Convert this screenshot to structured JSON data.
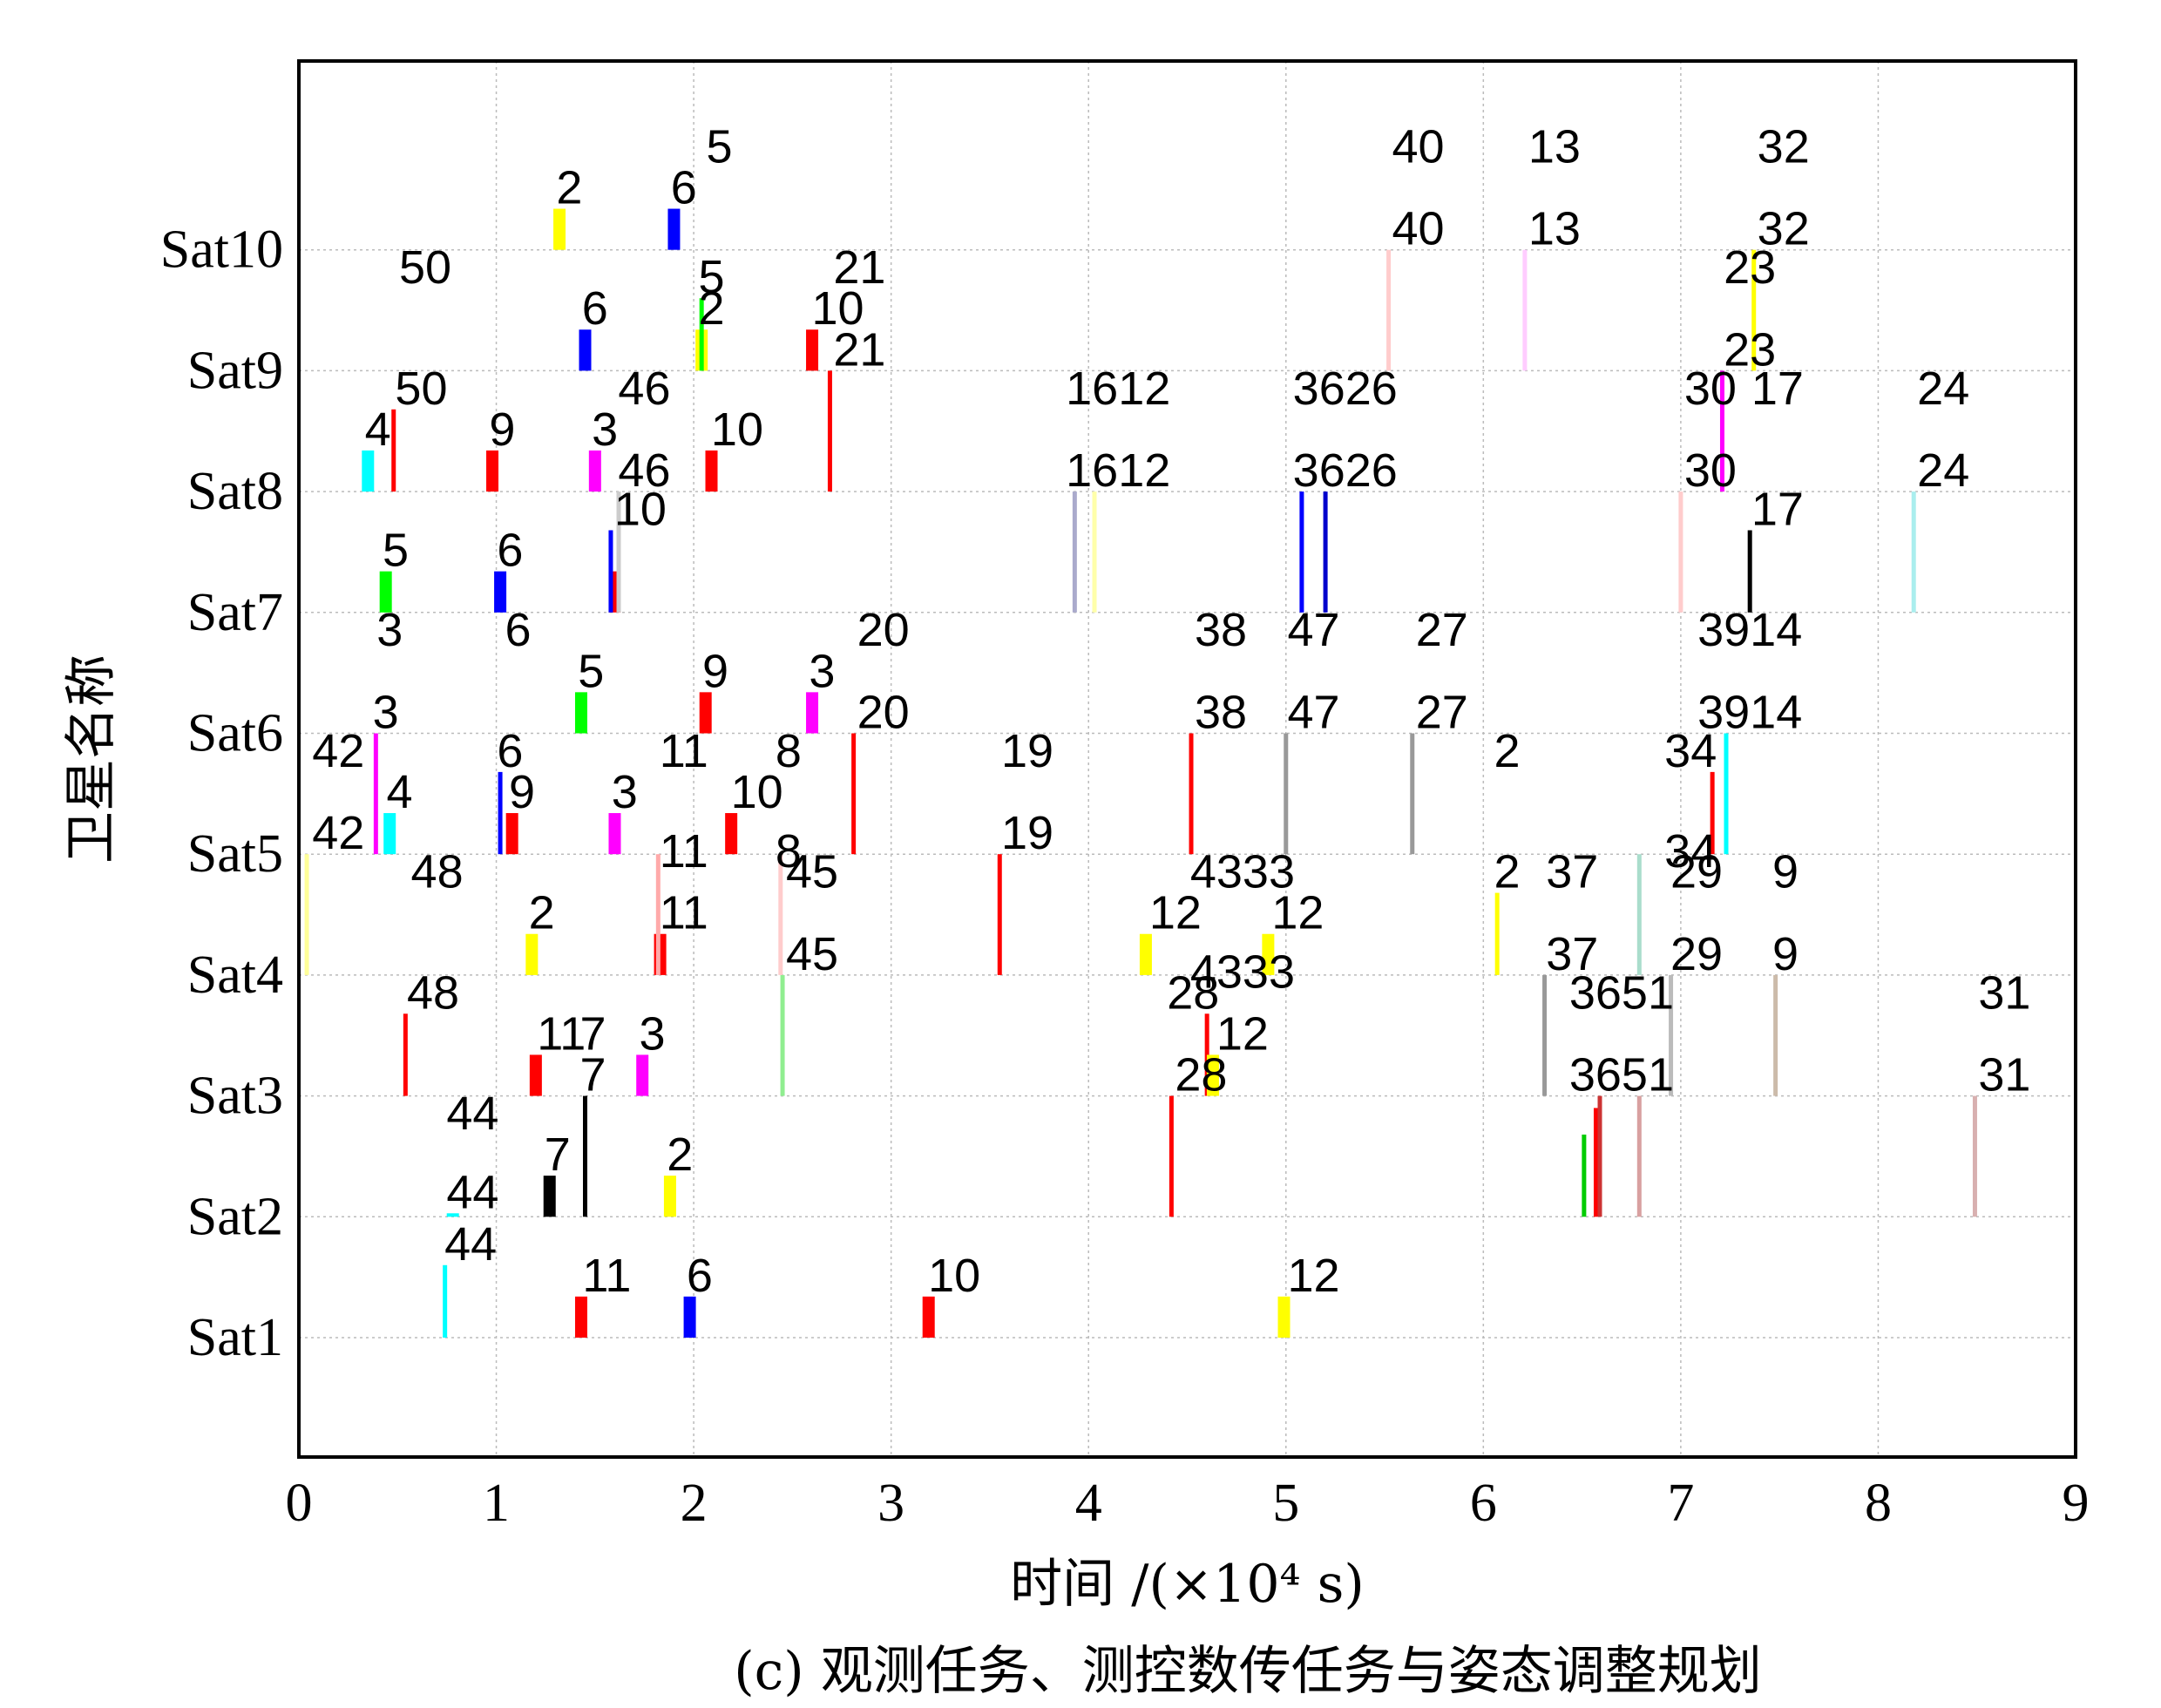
{
  "chart_data": {
    "type": "scatter",
    "subtype": "gantt-schedule",
    "xlabel": "时间 /(×10⁴ s)",
    "ylabel": "卫星名称",
    "caption": "(c) 观测任务、测控数传任务与姿态调整规划",
    "xlim": [
      0,
      9
    ],
    "xticks": [
      "0",
      "1",
      "2",
      "3",
      "4",
      "5",
      "6",
      "7",
      "8",
      "9"
    ],
    "satellites": [
      "Sat1",
      "Sat2",
      "Sat3",
      "Sat4",
      "Sat5",
      "Sat6",
      "Sat7",
      "Sat8",
      "Sat9",
      "Sat10"
    ],
    "grid": true,
    "tasks": [
      {
        "sat": 1,
        "x": 0.74,
        "h": 0.6,
        "color": "#00ffff",
        "label": "44",
        "lx": 0.87
      },
      {
        "sat": 1,
        "x": 1.43,
        "h": 0.34,
        "color": "#ff0000",
        "label": "11",
        "lx": 1.56
      },
      {
        "sat": 1,
        "x": 1.98,
        "h": 0.34,
        "color": "#0000ff",
        "label": "6",
        "lx": 2.03
      },
      {
        "sat": 1,
        "x": 3.19,
        "h": 0.34,
        "color": "#ff0000",
        "label": "10",
        "lx": 3.32
      },
      {
        "sat": 1,
        "x": 4.99,
        "h": 0.34,
        "color": "#ffff00",
        "label": "12",
        "lx": 5.14
      },
      {
        "sat": 2,
        "x": 1.27,
        "h": 0.34,
        "color": "#000000",
        "label": "7",
        "lx": 1.31
      },
      {
        "sat": 2,
        "x": 1.45,
        "h": 1.0,
        "color": "#000000",
        "label": "7",
        "lx": 1.49
      },
      {
        "sat": 2,
        "x": 1.88,
        "h": 0.34,
        "color": "#ffff00",
        "label": "2",
        "lx": 1.93
      },
      {
        "sat": 2,
        "x": 0.78,
        "h": 0.0,
        "color": "#00ffff",
        "label": "44",
        "lx": 0.88
      },
      {
        "sat": 2,
        "x": 4.42,
        "h": 1.0,
        "color": "#ff0000",
        "label": "28",
        "lx": 4.57
      },
      {
        "sat": 2,
        "x": 6.51,
        "h": 0.68,
        "color": "#00cc00",
        "label": "",
        "lx": 0
      },
      {
        "sat": 2,
        "x": 6.57,
        "h": 0.9,
        "color": "#ff0000",
        "label": "",
        "lx": 0
      },
      {
        "sat": 2,
        "x": 6.59,
        "h": 1.0,
        "color": "#cc3333",
        "label": "3651",
        "lx": 6.7
      },
      {
        "sat": 2,
        "x": 6.79,
        "h": 1.0,
        "color": "#d8a0a0",
        "label": "",
        "lx": 0
      },
      {
        "sat": 2,
        "x": 8.49,
        "h": 1.0,
        "color": "#d8b0b0",
        "label": "31",
        "lx": 8.64
      },
      {
        "sat": 3,
        "x": 0.54,
        "h": 0.68,
        "color": "#ff0000",
        "label": "48",
        "lx": 0.68
      },
      {
        "sat": 3,
        "x": 1.2,
        "h": 0.34,
        "color": "#ff0000",
        "label": "11",
        "lx": 1.33
      },
      {
        "sat": 3,
        "x": 1.74,
        "h": 0.34,
        "color": "#ff00ff",
        "label": "3",
        "lx": 1.79
      },
      {
        "sat": 3,
        "x": 2.45,
        "h": 1.0,
        "color": "#90ee90",
        "label": "45",
        "lx": 2.6
      },
      {
        "sat": 3,
        "x": 4.6,
        "h": 0.68,
        "color": "#ff0000",
        "label": "28",
        "lx": 4.53
      },
      {
        "sat": 3,
        "x": 4.63,
        "h": 0.34,
        "color": "#ffff00",
        "label": "12",
        "lx": 4.78
      },
      {
        "sat": 3,
        "x": 6.31,
        "h": 1.0,
        "color": "#999999",
        "label": "37",
        "lx": 6.45
      },
      {
        "sat": 3,
        "x": 6.95,
        "h": 1.0,
        "color": "#bbbbbb",
        "label": "29",
        "lx": 7.08
      },
      {
        "sat": 3,
        "x": 7.48,
        "h": 1.0,
        "color": "#ccbbaa",
        "label": "9",
        "lx": 7.53
      },
      {
        "sat": 4,
        "x": 0.04,
        "h": 1.0,
        "color": "#ffff99",
        "label": "42",
        "lx": 0.2
      },
      {
        "sat": 4,
        "x": 1.18,
        "h": 0.34,
        "color": "#ffff00",
        "label": "2",
        "lx": 1.23
      },
      {
        "sat": 4,
        "x": 1.83,
        "h": 0.34,
        "color": "#ff0000",
        "label": "11",
        "lx": 1.95
      },
      {
        "sat": 4,
        "x": 1.82,
        "h": 1.0,
        "color": "#ffaaaa",
        "label": "",
        "lx": 0
      },
      {
        "sat": 4,
        "x": 2.44,
        "h": 1.0,
        "color": "#ffcccc",
        "label": "",
        "lx": 0
      },
      {
        "sat": 4,
        "x": 3.55,
        "h": 1.0,
        "color": "#ff0000",
        "label": "19",
        "lx": 3.69
      },
      {
        "sat": 4,
        "x": 4.29,
        "h": 0.34,
        "color": "#ffff00",
        "label": "12",
        "lx": 4.44
      },
      {
        "sat": 4,
        "x": 4.91,
        "h": 0.34,
        "color": "#ffff00",
        "label": "12",
        "lx": 5.06
      },
      {
        "sat": 4,
        "x": 6.07,
        "h": 0.68,
        "color": "#ffff00",
        "label": "2",
        "lx": 6.12
      },
      {
        "sat": 4,
        "x": 6.79,
        "h": 1.0,
        "color": "#aaddcc",
        "label": "",
        "lx": 0
      },
      {
        "sat": 5,
        "x": 0.39,
        "h": 1.0,
        "color": "#ff00ff",
        "label": "3",
        "lx": 0.44
      },
      {
        "sat": 5,
        "x": 0.46,
        "h": 0.34,
        "color": "#00ffff",
        "label": "4",
        "lx": 0.51
      },
      {
        "sat": 5,
        "x": 1.02,
        "h": 0.68,
        "color": "#0000ff",
        "label": "6",
        "lx": 1.07
      },
      {
        "sat": 5,
        "x": 1.08,
        "h": 0.34,
        "color": "#ff0000",
        "label": "9",
        "lx": 1.13
      },
      {
        "sat": 5,
        "x": 1.6,
        "h": 0.34,
        "color": "#ff00ff",
        "label": "3",
        "lx": 1.65
      },
      {
        "sat": 5,
        "x": 2.19,
        "h": 0.34,
        "color": "#ff0000",
        "label": "10",
        "lx": 2.32
      },
      {
        "sat": 5,
        "x": 2.81,
        "h": 1.0,
        "color": "#ff0000",
        "label": "20",
        "lx": 2.96
      },
      {
        "sat": 5,
        "x": 4.52,
        "h": 1.0,
        "color": "#ff0000",
        "label": "38",
        "lx": 4.67
      },
      {
        "sat": 5,
        "x": 5.0,
        "h": 1.0,
        "color": "#999999",
        "label": "47",
        "lx": 5.14
      },
      {
        "sat": 5,
        "x": 5.64,
        "h": 1.0,
        "color": "#999999",
        "label": "27",
        "lx": 5.79
      },
      {
        "sat": 5,
        "x": 7.16,
        "h": 0.68,
        "color": "#ff0000",
        "label": "",
        "lx": 0
      },
      {
        "sat": 5,
        "x": 7.23,
        "h": 1.0,
        "color": "#00ffff",
        "label": "3914",
        "lx": 7.35
      },
      {
        "sat": 6,
        "x": 1.43,
        "h": 0.34,
        "color": "#00ff00",
        "label": "5",
        "lx": 1.48
      },
      {
        "sat": 6,
        "x": 2.06,
        "h": 0.34,
        "color": "#ff0000",
        "label": "9",
        "lx": 2.11
      },
      {
        "sat": 6,
        "x": 2.6,
        "h": 0.34,
        "color": "#ff00ff",
        "label": "3",
        "lx": 2.65
      },
      {
        "sat": 7,
        "x": 0.44,
        "h": 0.34,
        "color": "#00ff00",
        "label": "5",
        "lx": 0.49
      },
      {
        "sat": 7,
        "x": 1.02,
        "h": 0.34,
        "color": "#0000ff",
        "label": "6",
        "lx": 1.07
      },
      {
        "sat": 7,
        "x": 1.6,
        "h": 0.34,
        "color": "#ff0000",
        "label": "",
        "lx": 0
      },
      {
        "sat": 7,
        "x": 1.58,
        "h": 0.68,
        "color": "#0000ff",
        "label": "10",
        "lx": 1.73
      },
      {
        "sat": 7,
        "x": 1.62,
        "h": 1.0,
        "color": "#cccccc",
        "label": "46",
        "lx": 1.75
      },
      {
        "sat": 7,
        "x": 3.93,
        "h": 1.0,
        "color": "#aaaacc",
        "label": "1612",
        "lx": 4.15
      },
      {
        "sat": 7,
        "x": 4.03,
        "h": 1.0,
        "color": "#ffffaa",
        "label": "",
        "lx": 0
      },
      {
        "sat": 7,
        "x": 5.08,
        "h": 1.0,
        "color": "#0000ff",
        "label": "3626",
        "lx": 5.3
      },
      {
        "sat": 7,
        "x": 5.2,
        "h": 1.0,
        "color": "#0000cc",
        "label": "",
        "lx": 0
      },
      {
        "sat": 7,
        "x": 7.0,
        "h": 1.0,
        "color": "#ffcccc",
        "label": "30",
        "lx": 7.15
      },
      {
        "sat": 7,
        "x": 7.35,
        "h": 0.68,
        "color": "#000000",
        "label": "17",
        "lx": 7.49
      },
      {
        "sat": 7,
        "x": 8.18,
        "h": 1.0,
        "color": "#aaeeee",
        "label": "24",
        "lx": 8.33
      },
      {
        "sat": 8,
        "x": 0.35,
        "h": 0.34,
        "color": "#00ffff",
        "label": "4",
        "lx": 0.4
      },
      {
        "sat": 8,
        "x": 0.48,
        "h": 0.68,
        "color": "#ff0000",
        "label": "50",
        "lx": 0.62
      },
      {
        "sat": 8,
        "x": 0.98,
        "h": 0.34,
        "color": "#ff0000",
        "label": "9",
        "lx": 1.03
      },
      {
        "sat": 8,
        "x": 1.5,
        "h": 0.34,
        "color": "#ff00ff",
        "label": "3",
        "lx": 1.55
      },
      {
        "sat": 8,
        "x": 2.09,
        "h": 0.34,
        "color": "#ff0000",
        "label": "10",
        "lx": 2.22
      },
      {
        "sat": 8,
        "x": 2.69,
        "h": 1.0,
        "color": "#ff0000",
        "label": "21",
        "lx": 2.84
      },
      {
        "sat": 8,
        "x": 7.21,
        "h": 1.0,
        "color": "#ff00ff",
        "label": "23",
        "lx": 7.35
      },
      {
        "sat": 9,
        "x": 1.45,
        "h": 0.34,
        "color": "#0000ff",
        "label": "6",
        "lx": 1.5
      },
      {
        "sat": 9,
        "x": 2.04,
        "h": 0.34,
        "color": "#ffff00",
        "label": "2",
        "lx": 2.09
      },
      {
        "sat": 9,
        "x": 2.04,
        "h": 0.6,
        "color": "#00ff00",
        "label": "5",
        "lx": 2.09
      },
      {
        "sat": 9,
        "x": 2.6,
        "h": 0.34,
        "color": "#ff0000",
        "label": "10",
        "lx": 2.73
      },
      {
        "sat": 9,
        "x": 5.52,
        "h": 1.0,
        "color": "#ffcccc",
        "label": "40",
        "lx": 5.67
      },
      {
        "sat": 9,
        "x": 6.21,
        "h": 1.0,
        "color": "#ffccff",
        "label": "13",
        "lx": 6.36
      },
      {
        "sat": 9,
        "x": 7.37,
        "h": 1.0,
        "color": "#ffff00",
        "label": "32",
        "lx": 7.52
      },
      {
        "sat": 10,
        "x": 1.32,
        "h": 0.34,
        "color": "#ffff00",
        "label": "2",
        "lx": 1.37
      },
      {
        "sat": 10,
        "x": 1.9,
        "h": 0.34,
        "color": "#0000ff",
        "label": "6",
        "lx": 1.95
      }
    ],
    "extra_labels": [
      {
        "sat": 10,
        "dy": 0.68,
        "lx": 2.13,
        "text": "5"
      },
      {
        "sat": 10,
        "dy": 0.68,
        "lx": 5.67,
        "text": "40"
      },
      {
        "sat": 10,
        "dy": 0.68,
        "lx": 6.36,
        "text": "13"
      },
      {
        "sat": 10,
        "dy": 0.68,
        "lx": 7.52,
        "text": "32"
      },
      {
        "sat": 9,
        "dy": 0.68,
        "lx": 0.64,
        "text": "50"
      },
      {
        "sat": 9,
        "dy": 0.68,
        "lx": 2.84,
        "text": "21"
      },
      {
        "sat": 9,
        "dy": 0.68,
        "lx": 7.35,
        "text": "23"
      },
      {
        "sat": 8,
        "dy": 0.68,
        "lx": 1.75,
        "text": "46"
      },
      {
        "sat": 8,
        "dy": 0.68,
        "lx": 4.15,
        "text": "1612"
      },
      {
        "sat": 8,
        "dy": 0.68,
        "lx": 5.3,
        "text": "3626"
      },
      {
        "sat": 8,
        "dy": 0.68,
        "lx": 7.15,
        "text": "30"
      },
      {
        "sat": 8,
        "dy": 0.68,
        "lx": 7.49,
        "text": "17"
      },
      {
        "sat": 8,
        "dy": 0.68,
        "lx": 8.33,
        "text": "24"
      },
      {
        "sat": 6,
        "dy": 0.68,
        "lx": 0.46,
        "text": "3"
      },
      {
        "sat": 6,
        "dy": 0.68,
        "lx": 1.11,
        "text": "6"
      },
      {
        "sat": 6,
        "dy": 0.68,
        "lx": 2.96,
        "text": "20"
      },
      {
        "sat": 6,
        "dy": 0.68,
        "lx": 4.67,
        "text": "38"
      },
      {
        "sat": 6,
        "dy": 0.68,
        "lx": 5.14,
        "text": "47"
      },
      {
        "sat": 6,
        "dy": 0.68,
        "lx": 5.79,
        "text": "27"
      },
      {
        "sat": 6,
        "dy": 0.68,
        "lx": 7.35,
        "text": "3914"
      },
      {
        "sat": 5,
        "dy": 0.68,
        "lx": 0.2,
        "text": "42"
      },
      {
        "sat": 5,
        "dy": 0.68,
        "lx": 1.95,
        "text": "11"
      },
      {
        "sat": 5,
        "dy": 0.68,
        "lx": 2.48,
        "text": "8"
      },
      {
        "sat": 5,
        "dy": 0.68,
        "lx": 3.69,
        "text": "19"
      },
      {
        "sat": 5,
        "dy": 0.68,
        "lx": 6.12,
        "text": "2"
      },
      {
        "sat": 5,
        "dy": 0.68,
        "lx": 7.05,
        "text": "34"
      },
      {
        "sat": 4,
        "dy": 0.68,
        "lx": 0.7,
        "text": "48"
      },
      {
        "sat": 4,
        "dy": 0.85,
        "lx": 1.95,
        "text": "11"
      },
      {
        "sat": 4,
        "dy": 0.85,
        "lx": 2.48,
        "text": "8"
      },
      {
        "sat": 4,
        "dy": 0.68,
        "lx": 2.6,
        "text": "45"
      },
      {
        "sat": 4,
        "dy": 0.68,
        "lx": 4.78,
        "text": "4333"
      },
      {
        "sat": 4,
        "dy": 0.68,
        "lx": 6.45,
        "text": "37"
      },
      {
        "sat": 4,
        "dy": 0.85,
        "lx": 7.05,
        "text": "34"
      },
      {
        "sat": 4,
        "dy": 0.68,
        "lx": 7.08,
        "text": "29"
      },
      {
        "sat": 4,
        "dy": 0.68,
        "lx": 7.53,
        "text": "9"
      },
      {
        "sat": 3,
        "dy": 0.85,
        "lx": 4.78,
        "text": "4333"
      },
      {
        "sat": 3,
        "dy": 0.68,
        "lx": 6.7,
        "text": "3651"
      },
      {
        "sat": 3,
        "dy": 0.68,
        "lx": 8.64,
        "text": "31"
      },
      {
        "sat": 2,
        "dy": 0.68,
        "lx": 0.88,
        "text": "44"
      },
      {
        "sat": 3,
        "dy": 0.34,
        "lx": 1.49,
        "text": "7"
      }
    ]
  }
}
